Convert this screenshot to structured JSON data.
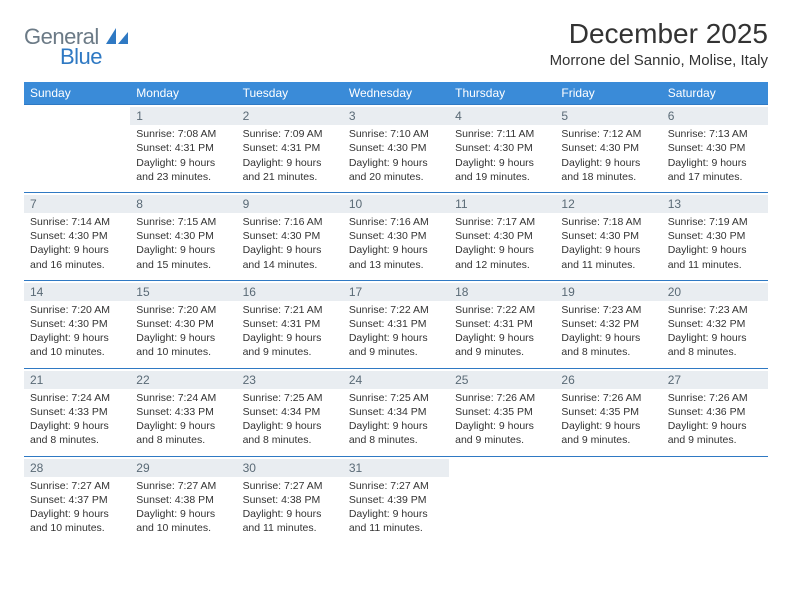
{
  "logo": {
    "general": "General",
    "blue": "Blue"
  },
  "title": "December 2025",
  "subtitle": "Morrone del Sannio, Molise, Italy",
  "colors": {
    "header_bg": "#3a8bd8",
    "header_text": "#ffffff",
    "row_border": "#2f79c3",
    "daynum_bg": "#e9edf1",
    "daynum_text": "#5a6a76",
    "body_text": "#333333",
    "logo_gray": "#6b7a86",
    "logo_blue": "#2f79c3"
  },
  "daysOfWeek": [
    "Sunday",
    "Monday",
    "Tuesday",
    "Wednesday",
    "Thursday",
    "Friday",
    "Saturday"
  ],
  "weeks": [
    [
      null,
      {
        "n": "1",
        "sr": "Sunrise: 7:08 AM",
        "ss": "Sunset: 4:31 PM",
        "d1": "Daylight: 9 hours",
        "d2": "and 23 minutes."
      },
      {
        "n": "2",
        "sr": "Sunrise: 7:09 AM",
        "ss": "Sunset: 4:31 PM",
        "d1": "Daylight: 9 hours",
        "d2": "and 21 minutes."
      },
      {
        "n": "3",
        "sr": "Sunrise: 7:10 AM",
        "ss": "Sunset: 4:30 PM",
        "d1": "Daylight: 9 hours",
        "d2": "and 20 minutes."
      },
      {
        "n": "4",
        "sr": "Sunrise: 7:11 AM",
        "ss": "Sunset: 4:30 PM",
        "d1": "Daylight: 9 hours",
        "d2": "and 19 minutes."
      },
      {
        "n": "5",
        "sr": "Sunrise: 7:12 AM",
        "ss": "Sunset: 4:30 PM",
        "d1": "Daylight: 9 hours",
        "d2": "and 18 minutes."
      },
      {
        "n": "6",
        "sr": "Sunrise: 7:13 AM",
        "ss": "Sunset: 4:30 PM",
        "d1": "Daylight: 9 hours",
        "d2": "and 17 minutes."
      }
    ],
    [
      {
        "n": "7",
        "sr": "Sunrise: 7:14 AM",
        "ss": "Sunset: 4:30 PM",
        "d1": "Daylight: 9 hours",
        "d2": "and 16 minutes."
      },
      {
        "n": "8",
        "sr": "Sunrise: 7:15 AM",
        "ss": "Sunset: 4:30 PM",
        "d1": "Daylight: 9 hours",
        "d2": "and 15 minutes."
      },
      {
        "n": "9",
        "sr": "Sunrise: 7:16 AM",
        "ss": "Sunset: 4:30 PM",
        "d1": "Daylight: 9 hours",
        "d2": "and 14 minutes."
      },
      {
        "n": "10",
        "sr": "Sunrise: 7:16 AM",
        "ss": "Sunset: 4:30 PM",
        "d1": "Daylight: 9 hours",
        "d2": "and 13 minutes."
      },
      {
        "n": "11",
        "sr": "Sunrise: 7:17 AM",
        "ss": "Sunset: 4:30 PM",
        "d1": "Daylight: 9 hours",
        "d2": "and 12 minutes."
      },
      {
        "n": "12",
        "sr": "Sunrise: 7:18 AM",
        "ss": "Sunset: 4:30 PM",
        "d1": "Daylight: 9 hours",
        "d2": "and 11 minutes."
      },
      {
        "n": "13",
        "sr": "Sunrise: 7:19 AM",
        "ss": "Sunset: 4:30 PM",
        "d1": "Daylight: 9 hours",
        "d2": "and 11 minutes."
      }
    ],
    [
      {
        "n": "14",
        "sr": "Sunrise: 7:20 AM",
        "ss": "Sunset: 4:30 PM",
        "d1": "Daylight: 9 hours",
        "d2": "and 10 minutes."
      },
      {
        "n": "15",
        "sr": "Sunrise: 7:20 AM",
        "ss": "Sunset: 4:30 PM",
        "d1": "Daylight: 9 hours",
        "d2": "and 10 minutes."
      },
      {
        "n": "16",
        "sr": "Sunrise: 7:21 AM",
        "ss": "Sunset: 4:31 PM",
        "d1": "Daylight: 9 hours",
        "d2": "and 9 minutes."
      },
      {
        "n": "17",
        "sr": "Sunrise: 7:22 AM",
        "ss": "Sunset: 4:31 PM",
        "d1": "Daylight: 9 hours",
        "d2": "and 9 minutes."
      },
      {
        "n": "18",
        "sr": "Sunrise: 7:22 AM",
        "ss": "Sunset: 4:31 PM",
        "d1": "Daylight: 9 hours",
        "d2": "and 9 minutes."
      },
      {
        "n": "19",
        "sr": "Sunrise: 7:23 AM",
        "ss": "Sunset: 4:32 PM",
        "d1": "Daylight: 9 hours",
        "d2": "and 8 minutes."
      },
      {
        "n": "20",
        "sr": "Sunrise: 7:23 AM",
        "ss": "Sunset: 4:32 PM",
        "d1": "Daylight: 9 hours",
        "d2": "and 8 minutes."
      }
    ],
    [
      {
        "n": "21",
        "sr": "Sunrise: 7:24 AM",
        "ss": "Sunset: 4:33 PM",
        "d1": "Daylight: 9 hours",
        "d2": "and 8 minutes."
      },
      {
        "n": "22",
        "sr": "Sunrise: 7:24 AM",
        "ss": "Sunset: 4:33 PM",
        "d1": "Daylight: 9 hours",
        "d2": "and 8 minutes."
      },
      {
        "n": "23",
        "sr": "Sunrise: 7:25 AM",
        "ss": "Sunset: 4:34 PM",
        "d1": "Daylight: 9 hours",
        "d2": "and 8 minutes."
      },
      {
        "n": "24",
        "sr": "Sunrise: 7:25 AM",
        "ss": "Sunset: 4:34 PM",
        "d1": "Daylight: 9 hours",
        "d2": "and 8 minutes."
      },
      {
        "n": "25",
        "sr": "Sunrise: 7:26 AM",
        "ss": "Sunset: 4:35 PM",
        "d1": "Daylight: 9 hours",
        "d2": "and 9 minutes."
      },
      {
        "n": "26",
        "sr": "Sunrise: 7:26 AM",
        "ss": "Sunset: 4:35 PM",
        "d1": "Daylight: 9 hours",
        "d2": "and 9 minutes."
      },
      {
        "n": "27",
        "sr": "Sunrise: 7:26 AM",
        "ss": "Sunset: 4:36 PM",
        "d1": "Daylight: 9 hours",
        "d2": "and 9 minutes."
      }
    ],
    [
      {
        "n": "28",
        "sr": "Sunrise: 7:27 AM",
        "ss": "Sunset: 4:37 PM",
        "d1": "Daylight: 9 hours",
        "d2": "and 10 minutes."
      },
      {
        "n": "29",
        "sr": "Sunrise: 7:27 AM",
        "ss": "Sunset: 4:38 PM",
        "d1": "Daylight: 9 hours",
        "d2": "and 10 minutes."
      },
      {
        "n": "30",
        "sr": "Sunrise: 7:27 AM",
        "ss": "Sunset: 4:38 PM",
        "d1": "Daylight: 9 hours",
        "d2": "and 11 minutes."
      },
      {
        "n": "31",
        "sr": "Sunrise: 7:27 AM",
        "ss": "Sunset: 4:39 PM",
        "d1": "Daylight: 9 hours",
        "d2": "and 11 minutes."
      },
      null,
      null,
      null
    ]
  ]
}
